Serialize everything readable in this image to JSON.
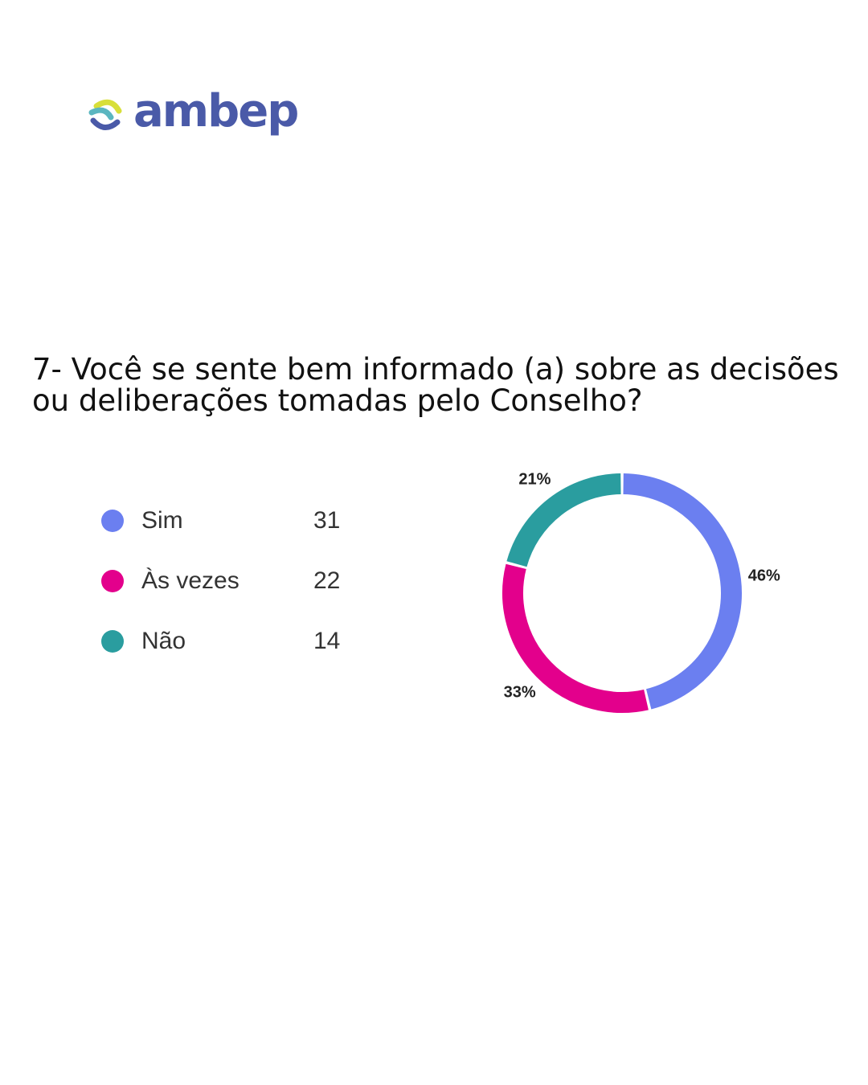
{
  "logo": {
    "text": "ambep",
    "colors": {
      "text": "#4a5aa8",
      "swoosh_yellow": "#d8df3a",
      "swoosh_teal": "#5bb6c0",
      "swoosh_blue": "#4a5aa8"
    }
  },
  "question": "7- Você se sente bem informado (a) sobre as decisões ou deliberações tomadas pelo Conselho?",
  "chart_data": {
    "type": "pie",
    "variant": "donut",
    "title": "",
    "categories": [
      "Sim",
      "Às vezes",
      "Não"
    ],
    "values": [
      31,
      22,
      14
    ],
    "percent_labels": [
      "46%",
      "33%",
      "21%"
    ],
    "colors": [
      "#6b7ff0",
      "#e3008c",
      "#2a9d9f"
    ],
    "legend_position": "left"
  }
}
